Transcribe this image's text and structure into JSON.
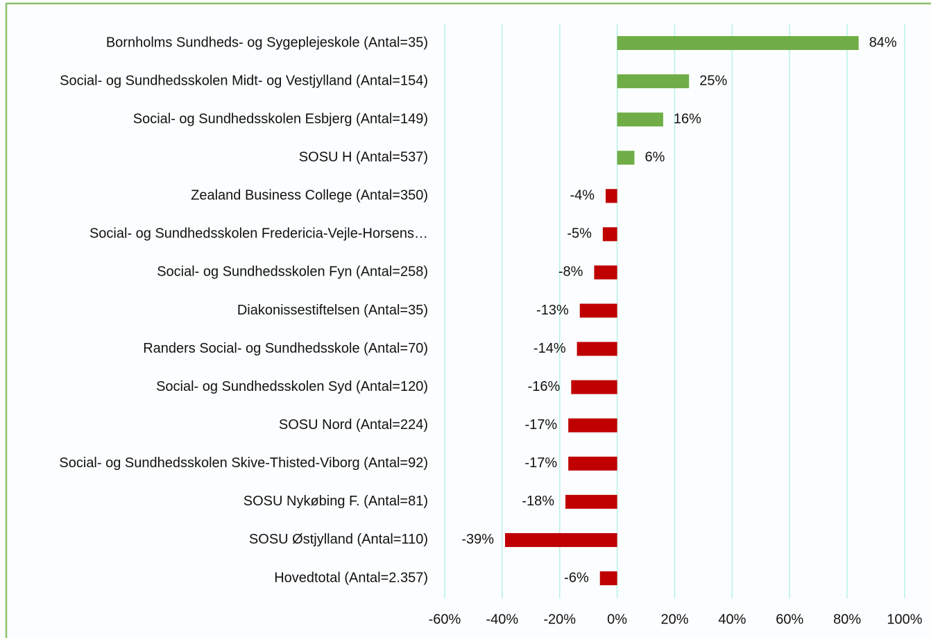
{
  "chart_data": {
    "type": "barh",
    "categories": [
      "Bornholms Sundheds- og Sygeplejeskole (Antal=35)",
      "Social- og Sundhedsskolen Midt- og Vestjylland (Antal=154)",
      "Social- og Sundhedsskolen Esbjerg (Antal=149)",
      "SOSU H (Antal=537)",
      "Zealand Business College (Antal=350)",
      "Social- og Sundhedsskolen Fredericia-Vejle-Horsens…",
      "Social- og Sundhedsskolen Fyn (Antal=258)",
      "Diakonissestiftelsen (Antal=35)",
      "Randers Social- og Sundhedsskole (Antal=70)",
      "Social- og Sundhedsskolen Syd (Antal=120)",
      "SOSU Nord (Antal=224)",
      "Social- og Sundhedsskolen Skive-Thisted-Viborg (Antal=92)",
      "SOSU Nykøbing F. (Antal=81)",
      "SOSU Østjylland (Antal=110)",
      "Hovedtotal (Antal=2.357)"
    ],
    "values": [
      84,
      25,
      16,
      6,
      -4,
      -5,
      -8,
      -13,
      -14,
      -16,
      -17,
      -17,
      -18,
      -39,
      -6
    ],
    "value_labels": [
      "84%",
      "25%",
      "16%",
      "6%",
      "-4%",
      "-5%",
      "-8%",
      "-13%",
      "-14%",
      "-16%",
      "-17%",
      "-17%",
      "-18%",
      "-39%",
      "-6%"
    ],
    "positive_color": "#70ad47",
    "negative_color": "#c00000",
    "xlim": [
      -60,
      100
    ],
    "xticks": [
      {
        "value": -60,
        "label": "-60%"
      },
      {
        "value": -40,
        "label": "-40%"
      },
      {
        "value": -20,
        "label": "-20%"
      },
      {
        "value": 0,
        "label": "0%"
      },
      {
        "value": 20,
        "label": "20%"
      },
      {
        "value": 40,
        "label": "40%"
      },
      {
        "value": 60,
        "label": "60%"
      },
      {
        "value": 80,
        "label": "80%"
      },
      {
        "value": 100,
        "label": "100%"
      }
    ],
    "grid": true
  }
}
